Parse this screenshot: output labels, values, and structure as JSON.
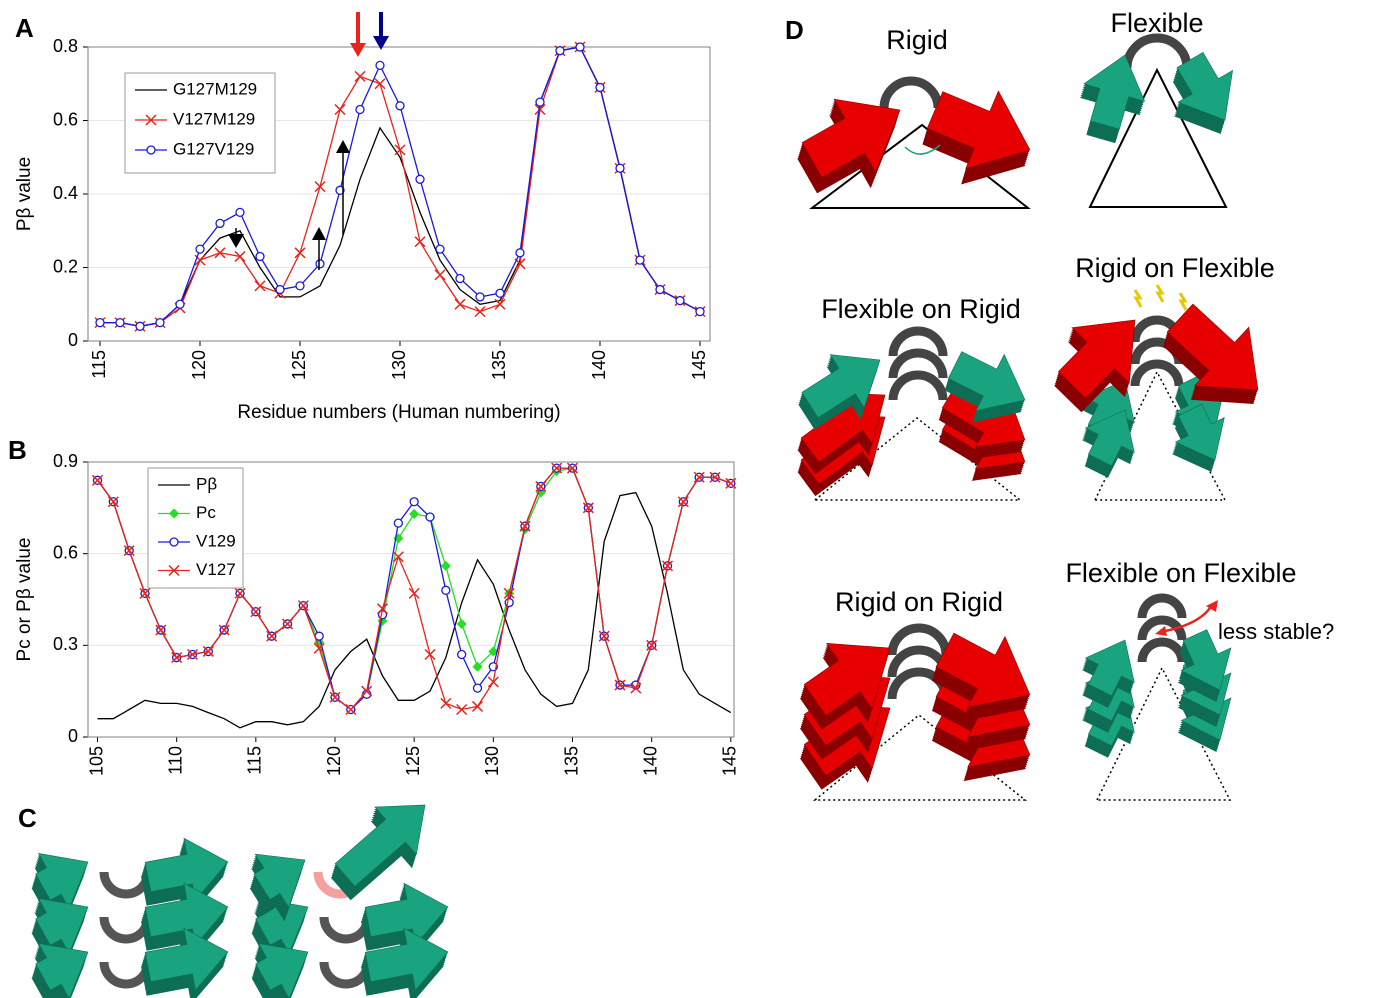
{
  "chart_data": [
    {
      "type": "line",
      "panel": "A",
      "ylabel": "Pβ value",
      "xlabel": "Residue numbers (Human numbering)",
      "x": [
        115,
        116,
        117,
        118,
        119,
        120,
        121,
        122,
        123,
        124,
        125,
        126,
        127,
        128,
        129,
        130,
        131,
        132,
        133,
        134,
        135,
        136,
        137,
        138,
        139,
        140,
        141,
        142,
        143,
        144,
        145
      ],
      "series": [
        {
          "name": "G127M129",
          "color": "#000000",
          "marker": "none",
          "values": [
            0.05,
            0.05,
            0.04,
            0.05,
            0.1,
            0.22,
            0.28,
            0.3,
            0.2,
            0.12,
            0.12,
            0.15,
            0.26,
            0.44,
            0.58,
            0.5,
            0.35,
            0.22,
            0.14,
            0.1,
            0.11,
            0.22,
            0.65,
            0.79,
            0.8,
            0.69,
            0.47,
            0.22,
            0.14,
            0.11,
            0.08
          ]
        },
        {
          "name": "V127M129",
          "color": "#e8241c",
          "marker": "x",
          "values": [
            0.05,
            0.05,
            0.04,
            0.05,
            0.09,
            0.22,
            0.24,
            0.23,
            0.15,
            0.13,
            0.24,
            0.42,
            0.63,
            0.72,
            0.7,
            0.52,
            0.27,
            0.18,
            0.1,
            0.08,
            0.1,
            0.21,
            0.63,
            0.79,
            0.8,
            0.69,
            0.47,
            0.22,
            0.14,
            0.11,
            0.08
          ]
        },
        {
          "name": "G127V129",
          "color": "#1a1adc",
          "marker": "circle",
          "values": [
            0.05,
            0.05,
            0.04,
            0.05,
            0.1,
            0.25,
            0.32,
            0.35,
            0.23,
            0.14,
            0.15,
            0.21,
            0.41,
            0.63,
            0.75,
            0.64,
            0.44,
            0.25,
            0.17,
            0.12,
            0.13,
            0.24,
            0.65,
            0.79,
            0.8,
            0.69,
            0.47,
            0.22,
            0.14,
            0.11,
            0.08
          ]
        }
      ],
      "xlim": [
        114.4,
        145.5
      ],
      "ylim": [
        0,
        0.8
      ],
      "xticks": [
        115,
        120,
        125,
        130,
        135,
        140,
        145
      ],
      "yticks": [
        0,
        0.2,
        0.4,
        0.6,
        0.8
      ],
      "grid": true,
      "legend": "upper left"
    },
    {
      "type": "line",
      "panel": "B",
      "ylabel": "Pc or Pβ value",
      "x": [
        105,
        106,
        107,
        108,
        109,
        110,
        111,
        112,
        113,
        114,
        115,
        116,
        117,
        118,
        119,
        120,
        121,
        122,
        123,
        124,
        125,
        126,
        127,
        128,
        129,
        130,
        131,
        132,
        133,
        134,
        135,
        136,
        137,
        138,
        139,
        140,
        141,
        142,
        143,
        144,
        145
      ],
      "series": [
        {
          "name": "Pβ",
          "color": "#000000",
          "marker": "none",
          "values": [
            0.06,
            0.06,
            0.09,
            0.12,
            0.11,
            0.11,
            0.1,
            0.08,
            0.06,
            0.03,
            0.05,
            0.05,
            0.04,
            0.05,
            0.1,
            0.22,
            0.28,
            0.32,
            0.2,
            0.12,
            0.12,
            0.15,
            0.26,
            0.44,
            0.58,
            0.5,
            0.35,
            0.22,
            0.14,
            0.1,
            0.11,
            0.22,
            0.64,
            0.79,
            0.8,
            0.69,
            0.47,
            0.22,
            0.14,
            0.11,
            0.08
          ]
        },
        {
          "name": "Pc",
          "color": "#22e022",
          "marker": "diamond",
          "values": [
            0.84,
            0.77,
            0.61,
            0.47,
            0.35,
            0.26,
            0.27,
            0.28,
            0.35,
            0.47,
            0.41,
            0.33,
            0.37,
            0.43,
            0.31,
            0.13,
            0.09,
            0.14,
            0.38,
            0.65,
            0.73,
            0.72,
            0.56,
            0.37,
            0.23,
            0.28,
            0.47,
            0.68,
            0.8,
            0.87,
            0.88,
            0.75,
            0.33,
            0.17,
            0.17,
            0.3,
            0.56,
            0.77,
            0.85,
            0.85,
            0.83
          ]
        },
        {
          "name": "V129",
          "color": "#1a1adc",
          "marker": "circle",
          "values": [
            0.84,
            0.77,
            0.61,
            0.47,
            0.35,
            0.26,
            0.27,
            0.28,
            0.35,
            0.47,
            0.41,
            0.33,
            0.37,
            0.43,
            0.33,
            0.13,
            0.09,
            0.14,
            0.4,
            0.7,
            0.77,
            0.72,
            0.48,
            0.27,
            0.16,
            0.23,
            0.44,
            0.69,
            0.82,
            0.88,
            0.88,
            0.75,
            0.33,
            0.17,
            0.17,
            0.3,
            0.56,
            0.77,
            0.85,
            0.85,
            0.83
          ]
        },
        {
          "name": "V127",
          "color": "#e8241c",
          "marker": "x",
          "values": [
            0.84,
            0.77,
            0.61,
            0.47,
            0.35,
            0.26,
            0.27,
            0.28,
            0.35,
            0.47,
            0.41,
            0.33,
            0.37,
            0.43,
            0.29,
            0.13,
            0.09,
            0.15,
            0.42,
            0.59,
            0.47,
            0.27,
            0.11,
            0.09,
            0.1,
            0.18,
            0.47,
            0.69,
            0.82,
            0.88,
            0.88,
            0.75,
            0.33,
            0.17,
            0.16,
            0.3,
            0.56,
            0.77,
            0.85,
            0.85,
            0.83
          ]
        }
      ],
      "xlim": [
        104.4,
        145.2
      ],
      "ylim": [
        0,
        0.9
      ],
      "xticks": [
        105,
        110,
        115,
        120,
        125,
        130,
        135,
        140,
        145
      ],
      "yticks": [
        0,
        0.3,
        0.6,
        0.9
      ],
      "grid": true,
      "legend": "upper left"
    }
  ],
  "panel_c": {
    "label": "C"
  },
  "panel_d": {
    "label": "D",
    "labels": [
      "Rigid",
      "Flexible",
      "Flexible on Rigid",
      "Rigid on Flexible",
      "Rigid on Rigid",
      "Flexible on Flexible"
    ],
    "annotation": "less stable?"
  }
}
